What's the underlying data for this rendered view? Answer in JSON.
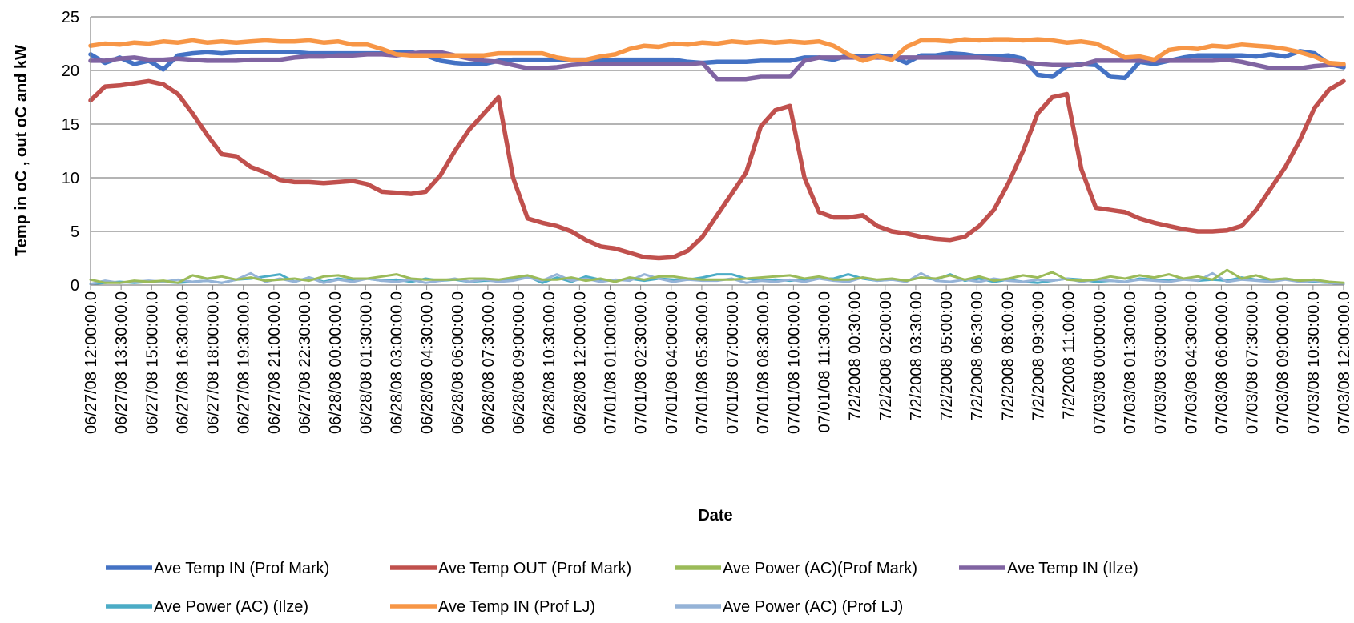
{
  "chart_data": {
    "type": "line",
    "title": "",
    "xlabel": "Date",
    "ylabel": "Temp in oC , out oC  and kW",
    "ylim": [
      0,
      25
    ],
    "yticks": [
      0,
      5,
      10,
      15,
      20,
      25
    ],
    "grid": "horizontal",
    "legend_position": "bottom",
    "x_tick_labels": [
      "06/27/08 12:00:00.0",
      "06/27/08 13:30:00.0",
      "06/27/08 15:00:00.0",
      "06/27/08 16:30:00.0",
      "06/27/08 18:00:00.0",
      "06/27/08 19:30:00.0",
      "06/27/08 21:00:00.0",
      "06/27/08 22:30:00.0",
      "06/28/08 00:00:00.0",
      "06/28/08 01:30:00.0",
      "06/28/08 03:00:00.0",
      "06/28/08 04:30:00.0",
      "06/28/08 06:00:00.0",
      "06/28/08 07:30:00.0",
      "06/28/08 09:00:00.0",
      "06/28/08 10:30:00.0",
      "06/28/08 12:00:00.0",
      "07/01/08 01:00:00.0",
      "07/01/08 02:30:00.0",
      "07/01/08 04:00:00.0",
      "07/01/08 05:30:00.0",
      "07/01/08 07:00:00.0",
      "07/01/08 08:30:00.0",
      "07/01/08 10:00:00.0",
      "07/01/08 11:30:00.0",
      "7/2/2008 00:30:00",
      "7/2/2008 02:00:00",
      "7/2/2008 03:30:00",
      "7/2/2008 05:00:00",
      "7/2/2008 06:30:00",
      "7/2/2008 08:00:00",
      "7/2/2008 09:30:00",
      "7/2/2008 11:00:00",
      "07/03/08 00:00:00.0",
      "07/03/08 01:30:00.0",
      "07/03/08 03:00:00.0",
      "07/03/08 04:30:00.0",
      "07/03/08 06:00:00.0",
      "07/03/08 07:30:00.0",
      "07/03/08 09:00:00.0",
      "07/03/08 10:30:00.0",
      "07/03/08 12:00:00.0"
    ],
    "series": [
      {
        "name": "Ave Temp IN (Prof Mark)",
        "color": "#4472C4",
        "values": [
          21.5,
          20.7,
          21.2,
          20.6,
          20.9,
          20.1,
          21.4,
          21.6,
          21.7,
          21.6,
          21.7,
          21.7,
          21.7,
          21.7,
          21.7,
          21.6,
          21.6,
          21.6,
          21.6,
          21.6,
          21.6,
          21.7,
          21.7,
          21.4,
          20.9,
          20.7,
          20.6,
          20.6,
          20.9,
          21.0,
          21.0,
          21.0,
          21.0,
          21.0,
          21.0,
          20.9,
          21.0,
          21.0,
          21.0,
          21.0,
          21.0,
          20.8,
          20.7,
          20.8,
          20.8,
          20.8,
          20.9,
          20.9,
          20.9,
          21.2,
          21.2,
          21.0,
          21.4,
          21.3,
          21.4,
          21.3,
          20.7,
          21.4,
          21.4,
          21.6,
          21.5,
          21.3,
          21.3,
          21.4,
          21.1,
          19.6,
          19.4,
          20.4,
          20.6,
          20.5,
          19.4,
          19.3,
          20.8,
          20.6,
          20.9,
          21.2,
          21.4,
          21.4,
          21.4,
          21.4,
          21.3,
          21.5,
          21.3,
          21.8,
          21.6,
          20.6,
          20.3
        ]
      },
      {
        "name": "Ave Temp OUT (Prof Mark)",
        "color": "#C0504D",
        "values": [
          17.2,
          18.5,
          18.6,
          18.8,
          19.0,
          18.7,
          17.8,
          16.0,
          14.0,
          12.2,
          12.0,
          11.0,
          10.5,
          9.8,
          9.6,
          9.6,
          9.5,
          9.6,
          9.7,
          9.4,
          8.7,
          8.6,
          8.5,
          8.7,
          10.2,
          12.5,
          14.5,
          16.0,
          17.5,
          10.0,
          6.2,
          5.8,
          5.5,
          5.0,
          4.2,
          3.6,
          3.4,
          3.0,
          2.6,
          2.5,
          2.6,
          3.2,
          4.5,
          6.5,
          8.5,
          10.5,
          14.8,
          16.3,
          16.7,
          10.0,
          6.8,
          6.3,
          6.3,
          6.5,
          5.5,
          5.0,
          4.8,
          4.5,
          4.3,
          4.2,
          4.5,
          5.5,
          7.0,
          9.5,
          12.5,
          16.0,
          17.5,
          17.8,
          10.8,
          7.2,
          7.0,
          6.8,
          6.2,
          5.8,
          5.5,
          5.2,
          5.0,
          5.0,
          5.1,
          5.5,
          7.0,
          9.0,
          11.0,
          13.5,
          16.5,
          18.2,
          19.0
        ]
      },
      {
        "name": "Ave Power (AC)(Prof Mark)",
        "color": "#9BBB59",
        "values": [
          0.5,
          0.2,
          0.2,
          0.4,
          0.3,
          0.4,
          0.2,
          0.9,
          0.6,
          0.8,
          0.5,
          0.7,
          0.4,
          0.5,
          0.6,
          0.4,
          0.8,
          0.9,
          0.6,
          0.6,
          0.8,
          1.0,
          0.6,
          0.5,
          0.5,
          0.5,
          0.6,
          0.6,
          0.5,
          0.7,
          0.9,
          0.5,
          0.5,
          0.7,
          0.4,
          0.6,
          0.3,
          0.7,
          0.5,
          0.8,
          0.8,
          0.6,
          0.5,
          0.5,
          0.5,
          0.6,
          0.7,
          0.8,
          0.9,
          0.6,
          0.8,
          0.5,
          0.5,
          0.7,
          0.5,
          0.6,
          0.4,
          0.7,
          0.6,
          0.9,
          0.5,
          0.8,
          0.4,
          0.6,
          0.9,
          0.7,
          1.2,
          0.5,
          0.4,
          0.5,
          0.8,
          0.6,
          0.9,
          0.7,
          1.0,
          0.6,
          0.8,
          0.5,
          1.4,
          0.6,
          0.9,
          0.5,
          0.6,
          0.4,
          0.5,
          0.3,
          0.2
        ]
      },
      {
        "name": "Ave Temp IN (Ilze)",
        "color": "#8064A2",
        "values": [
          20.9,
          20.9,
          21.1,
          21.2,
          21.0,
          21.0,
          21.1,
          21.0,
          20.9,
          20.9,
          20.9,
          21.0,
          21.0,
          21.0,
          21.2,
          21.3,
          21.3,
          21.4,
          21.4,
          21.5,
          21.5,
          21.4,
          21.6,
          21.7,
          21.7,
          21.4,
          21.1,
          20.9,
          20.8,
          20.5,
          20.2,
          20.2,
          20.3,
          20.5,
          20.6,
          20.6,
          20.6,
          20.6,
          20.6,
          20.6,
          20.6,
          20.6,
          20.7,
          19.2,
          19.2,
          19.2,
          19.4,
          19.4,
          19.4,
          20.9,
          21.2,
          21.2,
          21.2,
          21.2,
          21.2,
          21.2,
          21.2,
          21.2,
          21.2,
          21.2,
          21.2,
          21.2,
          21.1,
          21.0,
          20.8,
          20.6,
          20.5,
          20.5,
          20.5,
          20.9,
          20.9,
          20.9,
          20.9,
          20.9,
          20.9,
          20.9,
          20.9,
          20.9,
          21.0,
          20.8,
          20.5,
          20.2,
          20.2,
          20.2,
          20.4,
          20.5,
          20.5
        ]
      },
      {
        "name": "Ave Power (AC) (Ilze)",
        "color": "#4BACC6",
        "values": [
          0.1,
          0.2,
          0.3,
          0.2,
          0.3,
          0.3,
          0.2,
          0.3,
          0.4,
          0.2,
          0.5,
          0.6,
          0.8,
          1.0,
          0.3,
          0.7,
          0.3,
          0.6,
          0.4,
          0.6,
          0.4,
          0.5,
          0.3,
          0.6,
          0.4,
          0.5,
          0.3,
          0.4,
          0.4,
          0.6,
          0.8,
          0.2,
          0.7,
          0.3,
          0.8,
          0.5,
          0.4,
          0.6,
          0.4,
          0.6,
          0.5,
          0.5,
          0.7,
          1.0,
          1.0,
          0.6,
          0.4,
          0.5,
          0.4,
          0.5,
          0.6,
          0.6,
          1.0,
          0.6,
          0.4,
          0.5,
          0.4,
          0.7,
          0.5,
          1.0,
          0.4,
          0.6,
          0.3,
          0.5,
          0.3,
          0.2,
          0.4,
          0.6,
          0.5,
          0.3,
          0.4,
          0.3,
          0.6,
          0.5,
          0.4,
          0.6,
          0.4,
          0.5,
          0.4,
          0.7,
          0.5,
          0.4,
          0.6,
          0.4,
          0.3,
          0.2,
          0.1
        ]
      },
      {
        "name": "Ave Temp IN (Prof LJ)",
        "color": "#F79646",
        "values": [
          22.3,
          22.5,
          22.4,
          22.6,
          22.5,
          22.7,
          22.6,
          22.8,
          22.6,
          22.7,
          22.6,
          22.7,
          22.8,
          22.7,
          22.7,
          22.8,
          22.6,
          22.7,
          22.4,
          22.4,
          22.0,
          21.5,
          21.4,
          21.4,
          21.4,
          21.4,
          21.4,
          21.4,
          21.6,
          21.6,
          21.6,
          21.6,
          21.2,
          21.0,
          21.0,
          21.3,
          21.5,
          22.0,
          22.3,
          22.2,
          22.5,
          22.4,
          22.6,
          22.5,
          22.7,
          22.6,
          22.7,
          22.6,
          22.7,
          22.6,
          22.7,
          22.3,
          21.5,
          20.9,
          21.3,
          21.0,
          22.2,
          22.8,
          22.8,
          22.7,
          22.9,
          22.8,
          22.9,
          22.9,
          22.8,
          22.9,
          22.8,
          22.6,
          22.7,
          22.5,
          21.9,
          21.2,
          21.3,
          21.0,
          21.9,
          22.1,
          22.0,
          22.3,
          22.2,
          22.4,
          22.3,
          22.2,
          22.0,
          21.7,
          21.3,
          20.7,
          20.6
        ]
      },
      {
        "name": "Ave Power (AC) (Prof LJ)",
        "color": "#95B3D7",
        "values": [
          0.1,
          0.4,
          0.2,
          0.3,
          0.4,
          0.3,
          0.5,
          0.3,
          0.4,
          0.2,
          0.5,
          1.1,
          0.3,
          0.6,
          0.3,
          0.7,
          0.2,
          0.5,
          0.3,
          0.6,
          0.4,
          0.3,
          0.5,
          0.2,
          0.4,
          0.6,
          0.3,
          0.5,
          0.3,
          0.4,
          0.7,
          0.4,
          1.0,
          0.4,
          0.6,
          0.3,
          0.5,
          0.4,
          1.0,
          0.6,
          0.3,
          0.5,
          0.4,
          0.4,
          0.6,
          0.2,
          0.4,
          0.3,
          0.5,
          0.3,
          0.6,
          0.4,
          0.3,
          0.7,
          0.4,
          0.5,
          0.3,
          1.1,
          0.4,
          0.3,
          0.5,
          0.3,
          0.6,
          0.4,
          0.3,
          0.5,
          0.4,
          0.6,
          0.3,
          0.5,
          0.4,
          0.3,
          0.5,
          0.4,
          0.3,
          0.5,
          0.4,
          1.1,
          0.3,
          0.5,
          0.4,
          0.3,
          0.5,
          0.3,
          0.4,
          0.2,
          0.1
        ]
      }
    ]
  }
}
